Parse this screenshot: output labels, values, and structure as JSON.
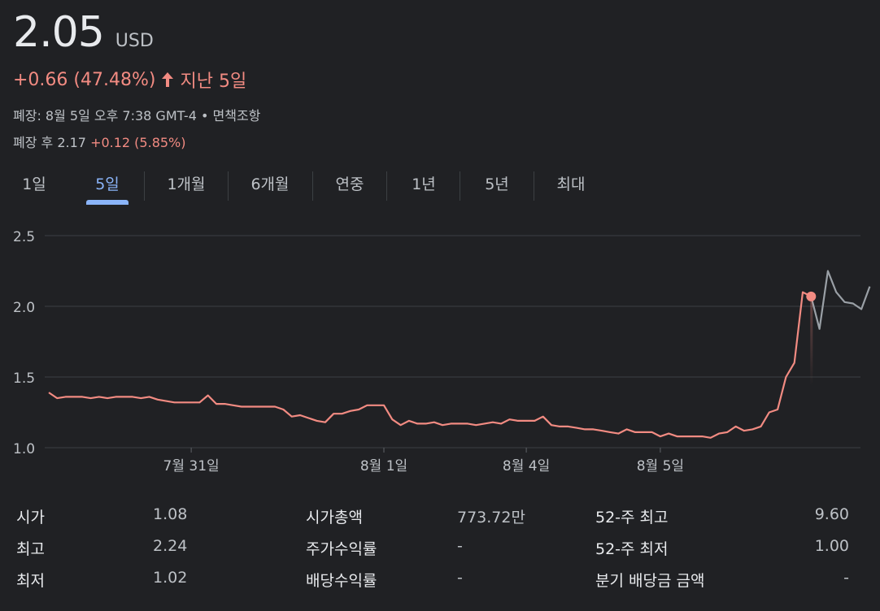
{
  "header": {
    "price": "2.05",
    "currency": "USD",
    "change": "+0.66 (47.48%)",
    "period": "지난 5일",
    "closed_text": "폐장: 8월 5일 오후 7:38 GMT-4 • 면책조항",
    "after_hours_label": "폐장 후 2.17",
    "after_hours_change": "+0.12 (5.85%)",
    "positive_color": "#f28b82",
    "accent_color": "#8ab4f8"
  },
  "tabs": [
    {
      "label": "1일",
      "active": false
    },
    {
      "label": "5일",
      "active": true
    },
    {
      "label": "1개월",
      "active": false
    },
    {
      "label": "6개월",
      "active": false
    },
    {
      "label": "연중",
      "active": false
    },
    {
      "label": "1년",
      "active": false
    },
    {
      "label": "5년",
      "active": false
    },
    {
      "label": "최대",
      "active": false
    }
  ],
  "chart_data": {
    "type": "line",
    "y_ticks": [
      "2.5",
      "2.0",
      "1.5",
      "1.0"
    ],
    "ylim": [
      1.0,
      2.5
    ],
    "x_labels": [
      {
        "label": "7월 31일",
        "index": 17
      },
      {
        "label": "8월 1일",
        "index": 40
      },
      {
        "label": "8월 4일",
        "index": 57
      },
      {
        "label": "8월 5일",
        "index": 73
      }
    ],
    "grid": true,
    "series": [
      {
        "color": "#f28b82",
        "values": [
          1.39,
          1.35,
          1.36,
          1.36,
          1.36,
          1.35,
          1.36,
          1.35,
          1.36,
          1.36,
          1.36,
          1.35,
          1.36,
          1.34,
          1.33,
          1.32,
          1.32,
          1.32,
          1.32,
          1.37,
          1.31,
          1.31,
          1.3,
          1.29,
          1.29,
          1.29,
          1.29,
          1.29,
          1.27,
          1.22,
          1.23,
          1.21,
          1.19,
          1.18,
          1.24,
          1.24,
          1.26,
          1.27,
          1.3,
          1.3,
          1.3,
          1.2,
          1.16,
          1.19,
          1.17,
          1.17,
          1.18,
          1.16,
          1.17,
          1.17,
          1.17,
          1.16,
          1.17,
          1.18,
          1.17,
          1.2,
          1.19,
          1.19,
          1.19,
          1.22,
          1.16,
          1.15,
          1.15,
          1.14,
          1.13,
          1.13,
          1.12,
          1.11,
          1.1,
          1.13,
          1.11,
          1.11,
          1.11,
          1.08,
          1.1,
          1.08,
          1.08,
          1.08,
          1.08,
          1.07,
          1.1,
          1.11,
          1.15,
          1.12,
          1.13,
          1.15,
          1.25,
          1.27,
          1.5,
          1.6,
          2.1,
          2.07
        ]
      },
      {
        "color": "#9aa0a6",
        "values": [
          2.07,
          1.84,
          2.25,
          2.1,
          2.03,
          2.02,
          1.98,
          2.14
        ]
      }
    ],
    "marker": {
      "series": 0,
      "value": 2.07
    }
  },
  "stats": [
    [
      {
        "label": "시가",
        "value": "1.08"
      },
      {
        "label": "시가총액",
        "value": "773.72만"
      },
      {
        "label": "52-주 최고",
        "value": "9.60"
      }
    ],
    [
      {
        "label": "최고",
        "value": "2.24"
      },
      {
        "label": "주가수익률",
        "value": "-"
      },
      {
        "label": "52-주 최저",
        "value": "1.00"
      }
    ],
    [
      {
        "label": "최저",
        "value": "1.02"
      },
      {
        "label": "배당수익률",
        "value": "-"
      },
      {
        "label": "분기 배당금 금액",
        "value": "-"
      }
    ]
  ]
}
